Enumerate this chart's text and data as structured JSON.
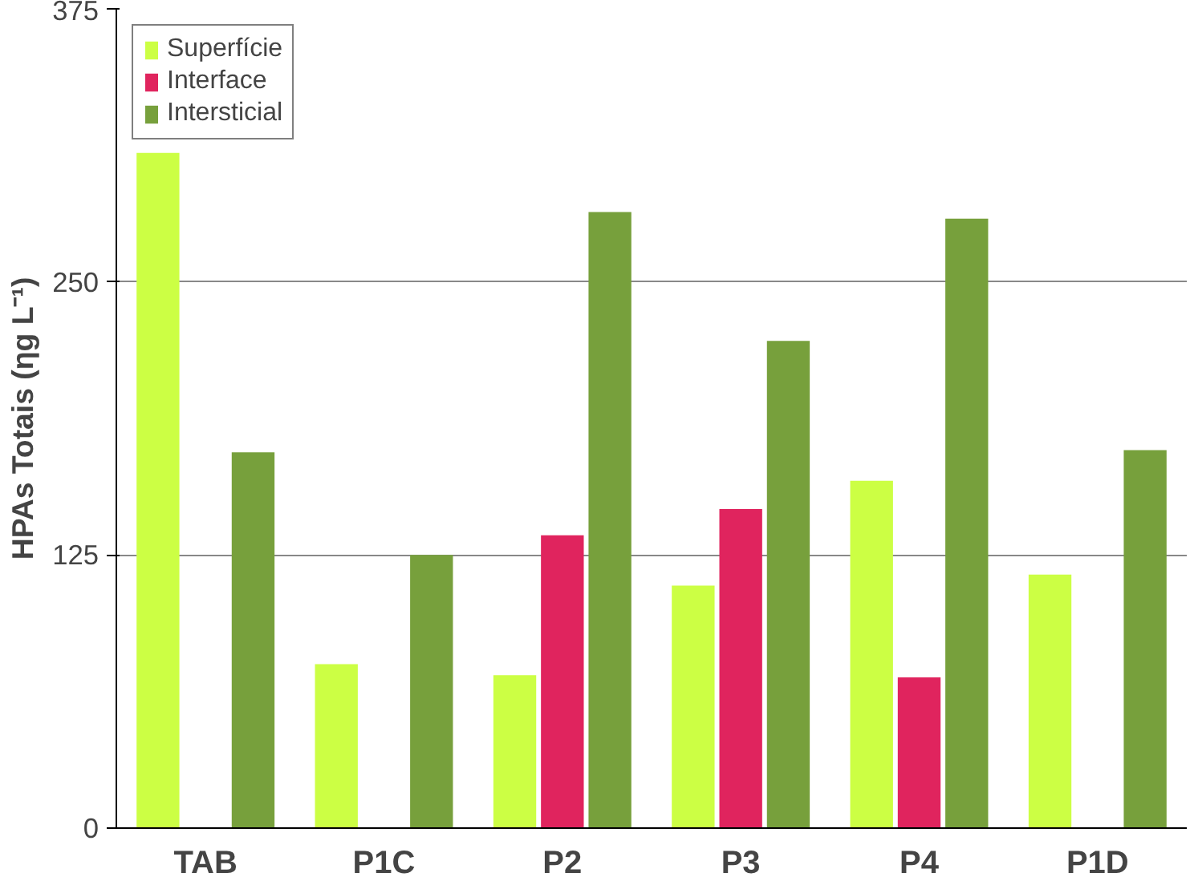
{
  "chart_data": {
    "type": "bar",
    "ylabel": "HPAs Totais (ηg L⁻¹)",
    "categories": [
      "TAB",
      "P1C",
      "P2",
      "P3",
      "P4",
      "P1D"
    ],
    "series": [
      {
        "name": "Superfície",
        "color": "#ccff44",
        "values": [
          309,
          75,
          70,
          111,
          159,
          116
        ]
      },
      {
        "name": "Interface",
        "color": "#e0245e",
        "values": [
          null,
          null,
          134,
          146,
          69,
          null
        ]
      },
      {
        "name": "Intersticial",
        "color": "#77a03c",
        "values": [
          172,
          125,
          282,
          223,
          279,
          173
        ]
      }
    ],
    "ylim": [
      0,
      375
    ],
    "yticks": [
      0,
      125,
      250,
      375
    ],
    "grid": "y",
    "legend": "top left"
  }
}
